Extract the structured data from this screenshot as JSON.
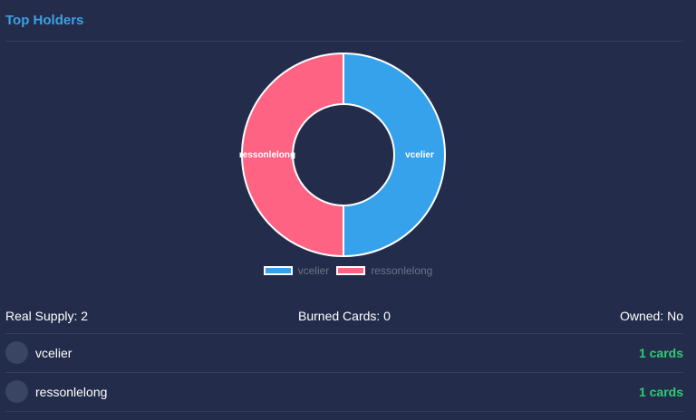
{
  "panel": {
    "title": "Top Holders"
  },
  "chart_data": {
    "type": "pie",
    "categories": [
      "vcelier",
      "ressonlelong"
    ],
    "values": [
      1,
      1
    ],
    "colors": [
      "#36a2eb",
      "#ff6384"
    ],
    "legend_position": "bottom",
    "slice_labels": [
      "vcelier",
      "ressonlelong"
    ]
  },
  "stats": {
    "real_supply": "Real Supply: 2",
    "burned_cards": "Burned Cards: 0",
    "owned": "Owned: No"
  },
  "holders": [
    {
      "name": "vcelier",
      "count": "1 cards"
    },
    {
      "name": "ressonlelong",
      "count": "1 cards"
    }
  ]
}
